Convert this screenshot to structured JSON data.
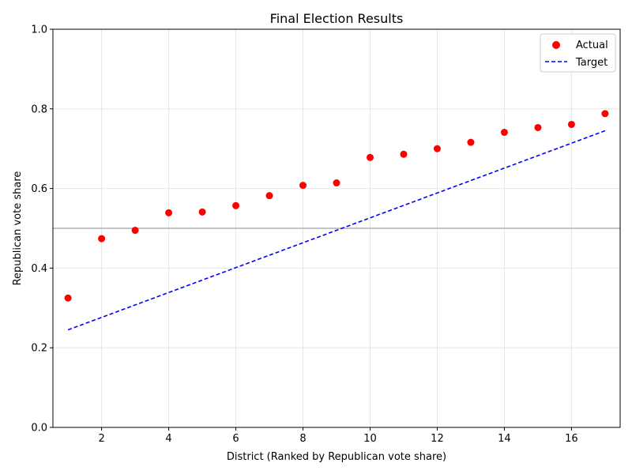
{
  "chart_data": {
    "type": "scatter",
    "title": "Final Election Results",
    "xlabel": "District (Ranked by Republican vote share)",
    "ylabel": "Republican vote share",
    "xlim": [
      0.55,
      17.45
    ],
    "ylim": [
      0,
      1.0
    ],
    "x_ticks": [
      2,
      4,
      6,
      8,
      10,
      12,
      14,
      16
    ],
    "y_ticks": [
      0.0,
      0.2,
      0.4,
      0.6,
      0.8,
      1.0
    ],
    "x_tick_labels": [
      "2",
      "4",
      "6",
      "8",
      "10",
      "12",
      "14",
      "16"
    ],
    "y_tick_labels": [
      "0.0",
      "0.2",
      "0.4",
      "0.6",
      "0.8",
      "1.0"
    ],
    "grid": true,
    "legend_position": "top-right",
    "series": [
      {
        "name": "Actual",
        "kind": "scatter",
        "color": "#ff0000",
        "x": [
          1,
          2,
          3,
          4,
          5,
          6,
          7,
          8,
          9,
          10,
          11,
          12,
          13,
          14,
          15,
          16,
          17
        ],
        "y": [
          0.325,
          0.474,
          0.495,
          0.539,
          0.541,
          0.557,
          0.582,
          0.608,
          0.614,
          0.678,
          0.686,
          0.7,
          0.716,
          0.741,
          0.753,
          0.761,
          0.788
        ]
      },
      {
        "name": "Target",
        "kind": "line",
        "style": "dashed",
        "color": "#0000ff",
        "x": [
          1,
          17
        ],
        "y": [
          0.245,
          0.745
        ]
      }
    ],
    "reference_line": {
      "y": 0.5,
      "color": "#b0b0b0"
    }
  }
}
